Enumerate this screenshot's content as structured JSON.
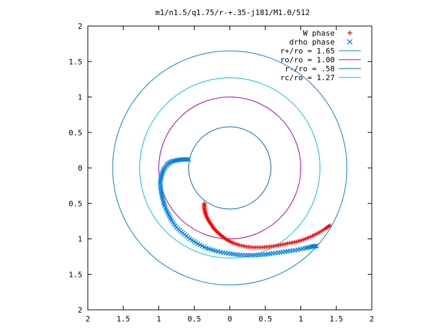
{
  "chart_data": {
    "type": "scatter",
    "title": "m1/n1.5/q1.75/r-+.35-j181/M1.0/512",
    "xlabel": "",
    "ylabel": "",
    "xlim": [
      -2,
      2
    ],
    "ylim": [
      -2,
      2
    ],
    "grid": false,
    "legend_position": "top-right",
    "x_ticks": [
      -2,
      -1.5,
      -1,
      -0.5,
      0,
      0.5,
      1,
      1.5,
      2
    ],
    "y_ticks": [
      2,
      1.5,
      1,
      0.5,
      0,
      -0.5,
      -1,
      -1.5,
      -2
    ],
    "x_tick_labels": [
      "2",
      "1.5",
      "1",
      "0.5",
      "0",
      "0.5",
      "1",
      "1.5",
      "2"
    ],
    "y_tick_labels": [
      "2",
      "1.5",
      "1",
      "0.5",
      "0",
      "0.5",
      "1",
      "1.5",
      "2"
    ],
    "circles": [
      {
        "name": "r+/ro = 1.65",
        "radius": 1.65,
        "color": "#0080c0"
      },
      {
        "name": "ro/ro = 1.00",
        "radius": 1.0,
        "color": "#a000a0"
      },
      {
        "name": "r-/ro = .58",
        "radius": 0.58,
        "color": "#0060b0"
      },
      {
        "name": "rc/ro = 1.27",
        "radius": 1.27,
        "color": "#00c0d0"
      }
    ],
    "series": [
      {
        "name": "W phase",
        "marker": "+",
        "color": "#ff0000",
        "points": [
          [
            -0.36,
            -0.5
          ],
          [
            -0.36,
            -0.56
          ],
          [
            -0.35,
            -0.62
          ],
          [
            -0.33,
            -0.68
          ],
          [
            -0.3,
            -0.74
          ],
          [
            -0.26,
            -0.8
          ],
          [
            -0.22,
            -0.86
          ],
          [
            -0.16,
            -0.92
          ],
          [
            -0.1,
            -0.97
          ],
          [
            -0.03,
            -1.02
          ],
          [
            0.05,
            -1.06
          ],
          [
            0.14,
            -1.09
          ],
          [
            0.24,
            -1.11
          ],
          [
            0.34,
            -1.12
          ],
          [
            0.44,
            -1.12
          ],
          [
            0.54,
            -1.11
          ],
          [
            0.64,
            -1.1
          ],
          [
            0.74,
            -1.08
          ],
          [
            0.84,
            -1.06
          ],
          [
            0.94,
            -1.04
          ],
          [
            1.04,
            -1.01
          ],
          [
            1.14,
            -0.97
          ],
          [
            1.24,
            -0.92
          ],
          [
            1.34,
            -0.86
          ],
          [
            1.41,
            -0.81
          ]
        ]
      },
      {
        "name": "drho phase",
        "marker": "x",
        "color": "#0080e0",
        "points": [
          [
            -0.58,
            0.12
          ],
          [
            -0.66,
            0.12
          ],
          [
            -0.74,
            0.11
          ],
          [
            -0.82,
            0.09
          ],
          [
            -0.88,
            0.05
          ],
          [
            -0.93,
            -0.02
          ],
          [
            -0.96,
            -0.1
          ],
          [
            -0.98,
            -0.2
          ],
          [
            -0.97,
            -0.32
          ],
          [
            -0.95,
            -0.42
          ],
          [
            -0.92,
            -0.53
          ],
          [
            -0.87,
            -0.64
          ],
          [
            -0.82,
            -0.74
          ],
          [
            -0.75,
            -0.84
          ],
          [
            -0.66,
            -0.92
          ],
          [
            -0.56,
            -1.0
          ],
          [
            -0.45,
            -1.07
          ],
          [
            -0.33,
            -1.13
          ],
          [
            -0.2,
            -1.17
          ],
          [
            -0.06,
            -1.2
          ],
          [
            0.08,
            -1.22
          ],
          [
            0.22,
            -1.23
          ],
          [
            0.36,
            -1.23
          ],
          [
            0.5,
            -1.22
          ],
          [
            0.64,
            -1.2
          ],
          [
            0.78,
            -1.18
          ],
          [
            0.92,
            -1.16
          ],
          [
            1.06,
            -1.13
          ],
          [
            1.16,
            -1.11
          ],
          [
            1.22,
            -1.1
          ]
        ]
      }
    ]
  }
}
